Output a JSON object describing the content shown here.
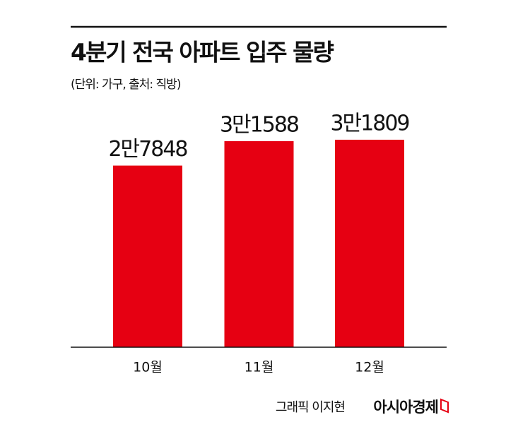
{
  "chart_data": {
    "type": "bar",
    "title": "4분기 전국 아파트 입주 물량",
    "subtitle": "(단위: 가구, 출처: 직방)",
    "categories": [
      "10월",
      "11월",
      "12월"
    ],
    "values": [
      27848,
      31588,
      31809
    ],
    "value_labels": [
      "2만7848",
      "3만1588",
      "3만1809"
    ],
    "color": "#e60012"
  },
  "footer": {
    "credit": "그래픽 이지현",
    "brand": "아시아경제"
  }
}
